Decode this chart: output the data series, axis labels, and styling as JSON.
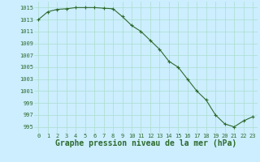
{
  "x": [
    0,
    1,
    2,
    3,
    4,
    5,
    6,
    7,
    8,
    9,
    10,
    11,
    12,
    13,
    14,
    15,
    16,
    17,
    18,
    19,
    20,
    21,
    22,
    23
  ],
  "y": [
    1013.0,
    1014.3,
    1014.7,
    1014.8,
    1015.0,
    1015.0,
    1015.0,
    1014.9,
    1014.8,
    1013.5,
    1012.0,
    1011.0,
    1009.5,
    1008.0,
    1006.0,
    1005.0,
    1003.0,
    1001.0,
    999.5,
    997.0,
    995.5,
    995.0,
    996.0,
    996.7
  ],
  "line_color": "#2d6a2d",
  "marker": "+",
  "marker_color": "#2d6a2d",
  "bg_color": "#cceeff",
  "grid_color": "#aaddcc",
  "xlabel": "Graphe pression niveau de la mer (hPa)",
  "xlabel_color": "#2d6a2d",
  "tick_color": "#2d6a2d",
  "ylim": [
    994,
    1016
  ],
  "yticks": [
    995,
    997,
    999,
    1001,
    1003,
    1005,
    1007,
    1009,
    1011,
    1013,
    1015
  ],
  "xticks": [
    0,
    1,
    2,
    3,
    4,
    5,
    6,
    7,
    8,
    9,
    10,
    11,
    12,
    13,
    14,
    15,
    16,
    17,
    18,
    19,
    20,
    21,
    22,
    23
  ],
  "tick_fontsize": 5.0,
  "xlabel_fontsize": 7.0,
  "linewidth": 0.8,
  "markersize": 3.0
}
